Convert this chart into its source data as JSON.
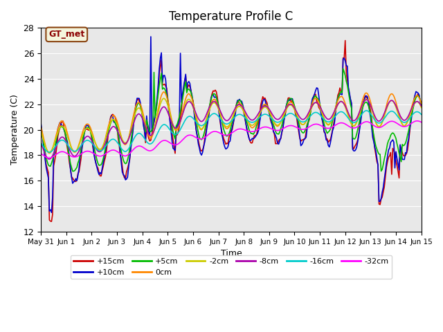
{
  "title": "Temperature Profile C",
  "xlabel": "Time",
  "ylabel": "Temperature (C)",
  "ylim": [
    12,
    28
  ],
  "xlim": [
    0,
    360
  ],
  "bg_color": "#e8e8e8",
  "legend_annotation": "GT_met",
  "series": [
    {
      "label": "+15cm",
      "color": "#cc0000",
      "lw": 1.2
    },
    {
      "label": "+10cm",
      "color": "#0000cc",
      "lw": 1.2
    },
    {
      "label": "+5cm",
      "color": "#00bb00",
      "lw": 1.2
    },
    {
      "label": "0cm",
      "color": "#ff8800",
      "lw": 1.2
    },
    {
      "label": "-2cm",
      "color": "#cccc00",
      "lw": 1.2
    },
    {
      "label": "-8cm",
      "color": "#aa00aa",
      "lw": 1.2
    },
    {
      "label": "-16cm",
      "color": "#00cccc",
      "lw": 1.2
    },
    {
      "label": "-32cm",
      "color": "#ff00ff",
      "lw": 1.2
    }
  ],
  "xtick_positions": [
    0,
    24,
    48,
    72,
    96,
    120,
    144,
    168,
    192,
    216,
    240,
    264,
    288,
    312,
    336,
    360
  ],
  "xtick_labels": [
    "May 31",
    "Jun 1",
    "Jun 2",
    "Jun 3",
    "Jun 4",
    "Jun 5",
    "Jun 6",
    "Jun 7",
    "Jun 8",
    "Jun 9",
    "Jun 10",
    "Jun 11",
    "Jun 12",
    "Jun 13",
    "Jun 14",
    "Jun 15"
  ],
  "ytick_positions": [
    12,
    14,
    16,
    18,
    20,
    22,
    24,
    26,
    28
  ]
}
